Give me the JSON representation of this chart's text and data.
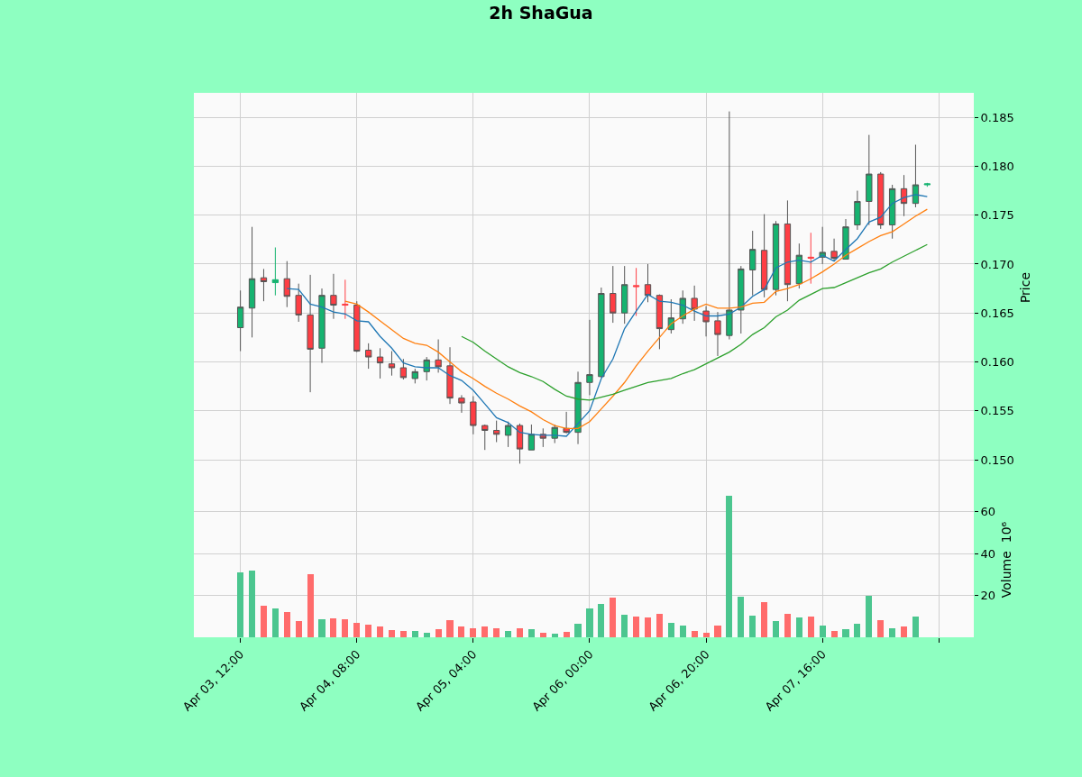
{
  "chart_data": [
    {
      "type": "candlestick",
      "title": "2h ShaGua",
      "ylabel": "Price",
      "x": [
        "--04-03T12:00",
        "--04-03T14:00",
        "--04-03T16:00",
        "--04-03T18:00",
        "--04-03T20:00",
        "--04-03T22:00",
        "--04-04T00:00",
        "--04-04T02:00",
        "--04-04T04:00",
        "--04-04T06:00",
        "--04-04T08:00",
        "--04-04T10:00",
        "--04-04T12:00",
        "--04-04T14:00",
        "--04-04T16:00",
        "--04-04T18:00",
        "--04-04T20:00",
        "--04-04T22:00",
        "--04-05T00:00",
        "--04-05T02:00",
        "--04-05T04:00",
        "--04-05T06:00",
        "--04-05T08:00",
        "--04-05T10:00",
        "--04-05T12:00",
        "--04-05T14:00",
        "--04-05T16:00",
        "--04-05T18:00",
        "--04-05T20:00",
        "--04-05T22:00",
        "--04-06T00:00",
        "--04-06T02:00",
        "--04-06T04:00",
        "--04-06T06:00",
        "--04-06T08:00",
        "--04-06T10:00",
        "--04-06T12:00",
        "--04-06T14:00",
        "--04-06T16:00",
        "--04-06T18:00",
        "--04-06T20:00",
        "--04-06T22:00",
        "--04-07T00:00",
        "--04-07T02:00",
        "--04-07T04:00",
        "--04-07T06:00",
        "--04-07T08:00",
        "--04-07T10:00",
        "--04-07T12:00",
        "--04-07T14:00",
        "--04-07T16:00",
        "--04-07T18:00",
        "--04-07T20:00",
        "--04-07T22:00",
        "--04-08T00:00",
        "--04-08T02:00",
        "--04-08T04:00",
        "--04-08T06:00",
        "--04-08T08:00",
        "--04-08T10:00"
      ],
      "ohlc": [
        [
          0.1635,
          0.1673,
          0.1611,
          0.1656
        ],
        [
          0.1655,
          0.1738,
          0.1625,
          0.1685
        ],
        [
          0.1686,
          0.1695,
          0.1662,
          0.1682
        ],
        [
          0.1681,
          0.1717,
          0.1668,
          0.1684
        ],
        [
          0.1685,
          0.1703,
          0.1656,
          0.1667
        ],
        [
          0.1668,
          0.168,
          0.1641,
          0.1648
        ],
        [
          0.1648,
          0.1689,
          0.1569,
          0.1613
        ],
        [
          0.1614,
          0.1675,
          0.1599,
          0.1668
        ],
        [
          0.1668,
          0.169,
          0.1644,
          0.1658
        ],
        [
          0.1659,
          0.1684,
          0.1644,
          0.1658
        ],
        [
          0.1658,
          0.1662,
          0.161,
          0.1611
        ],
        [
          0.1612,
          0.1619,
          0.1593,
          0.1605
        ],
        [
          0.1605,
          0.1614,
          0.1583,
          0.1599
        ],
        [
          0.1598,
          0.1611,
          0.1586,
          0.1594
        ],
        [
          0.1594,
          0.1603,
          0.1582,
          0.1584
        ],
        [
          0.1583,
          0.1593,
          0.1578,
          0.159
        ],
        [
          0.159,
          0.1605,
          0.1581,
          0.1602
        ],
        [
          0.1602,
          0.1623,
          0.1589,
          0.1595
        ],
        [
          0.1596,
          0.1615,
          0.1557,
          0.1563
        ],
        [
          0.1563,
          0.1566,
          0.1548,
          0.1558
        ],
        [
          0.1559,
          0.1565,
          0.1526,
          0.1535
        ],
        [
          0.1535,
          0.1536,
          0.151,
          0.153
        ],
        [
          0.153,
          0.154,
          0.1518,
          0.1526
        ],
        [
          0.1525,
          0.1539,
          0.1513,
          0.1535
        ],
        [
          0.1535,
          0.1537,
          0.1496,
          0.1511
        ],
        [
          0.151,
          0.1536,
          0.151,
          0.1526
        ],
        [
          0.1526,
          0.1532,
          0.1513,
          0.1522
        ],
        [
          0.1522,
          0.1536,
          0.1517,
          0.1533
        ],
        [
          0.1532,
          0.1549,
          0.1527,
          0.1528
        ],
        [
          0.1528,
          0.159,
          0.1516,
          0.1579
        ],
        [
          0.1579,
          0.1643,
          0.1566,
          0.1587
        ],
        [
          0.1585,
          0.1676,
          0.1584,
          0.167
        ],
        [
          0.167,
          0.1698,
          0.164,
          0.165
        ],
        [
          0.165,
          0.1698,
          0.1639,
          0.1679
        ],
        [
          0.1678,
          0.1696,
          0.1647,
          0.1677
        ],
        [
          0.1679,
          0.17,
          0.1661,
          0.1668
        ],
        [
          0.1668,
          0.1669,
          0.1613,
          0.1634
        ],
        [
          0.1633,
          0.1664,
          0.1629,
          0.1645
        ],
        [
          0.1644,
          0.1673,
          0.1639,
          0.1665
        ],
        [
          0.1665,
          0.1678,
          0.1642,
          0.1654
        ],
        [
          0.1652,
          0.1657,
          0.1626,
          0.1641
        ],
        [
          0.1642,
          0.1651,
          0.1606,
          0.1628
        ],
        [
          0.1627,
          0.1856,
          0.1623,
          0.1653
        ],
        [
          0.1653,
          0.1698,
          0.1629,
          0.1695
        ],
        [
          0.1694,
          0.1734,
          0.1668,
          0.1715
        ],
        [
          0.1714,
          0.1751,
          0.1666,
          0.1674
        ],
        [
          0.1674,
          0.1744,
          0.1668,
          0.1741
        ],
        [
          0.1741,
          0.1765,
          0.1662,
          0.1679
        ],
        [
          0.168,
          0.1721,
          0.1675,
          0.1709
        ],
        [
          0.1707,
          0.1732,
          0.168,
          0.1706
        ],
        [
          0.1707,
          0.1738,
          0.17,
          0.1712
        ],
        [
          0.1713,
          0.1726,
          0.1703,
          0.1706
        ],
        [
          0.1705,
          0.1746,
          0.1705,
          0.1738
        ],
        [
          0.174,
          0.1775,
          0.1735,
          0.1764
        ],
        [
          0.1764,
          0.1832,
          0.174,
          0.1792
        ],
        [
          0.1792,
          0.1794,
          0.1736,
          0.174
        ],
        [
          0.174,
          0.1781,
          0.1726,
          0.1777
        ],
        [
          0.1777,
          0.1791,
          0.1749,
          0.1762
        ],
        [
          0.1762,
          0.1822,
          0.1758,
          0.1781
        ],
        [
          0.1781,
          0.1783,
          0.1779,
          0.1782
        ]
      ],
      "colors": [
        "#16b370",
        "#16b370",
        "#fe3e44",
        "#16b370",
        "#fe3e44",
        "#fe3e44",
        "#fe3e44",
        "#16b370",
        "#fe3e44",
        "#fe3e44",
        "#fe3e44",
        "#fe3e44",
        "#fe3e44",
        "#fe3e44",
        "#fe3e44",
        "#16b370",
        "#16b370",
        "#fe3e44",
        "#fe3e44",
        "#fe3e44",
        "#fe3e44",
        "#fe3e44",
        "#fe3e44",
        "#16b370",
        "#fe3e44",
        "#16b370",
        "#fe3e44",
        "#16b370",
        "#fe3e44",
        "#16b370",
        "#16b370",
        "#16b370",
        "#fe3e44",
        "#16b370",
        "#fe3e44",
        "#fe3e44",
        "#fe3e44",
        "#16b370",
        "#16b370",
        "#fe3e44",
        "#fe3e44",
        "#fe3e44",
        "#16b370",
        "#16b370",
        "#16b370",
        "#fe3e44",
        "#16b370",
        "#fe3e44",
        "#16b370",
        "#fe3e44",
        "#16b370",
        "#fe3e44",
        "#16b370",
        "#16b370",
        "#16b370",
        "#fe3e44",
        "#16b370",
        "#fe3e44",
        "#16b370",
        "#16b370"
      ],
      "series": [
        {
          "type": "line",
          "color": "#1f77b4",
          "values": [
            null,
            null,
            null,
            null,
            0.1675,
            0.1674,
            0.1659,
            0.1656,
            0.1651,
            0.1649,
            0.1642,
            0.1641,
            0.1626,
            0.1614,
            0.1599,
            0.1595,
            0.1594,
            0.1594,
            0.1586,
            0.1581,
            0.1571,
            0.1557,
            0.1543,
            0.1538,
            0.1528,
            0.1526,
            0.1525,
            0.1525,
            0.1524,
            0.1537,
            0.155,
            0.1583,
            0.1603,
            0.1634,
            0.1652,
            0.1669,
            0.1662,
            0.1661,
            0.1658,
            0.1652,
            0.1647,
            0.1647,
            0.1649,
            0.1656,
            0.1667,
            0.1674,
            0.1696,
            0.1702,
            0.1704,
            0.1702,
            0.1709,
            0.1703,
            0.1715,
            0.1726,
            0.1743,
            0.1748,
            0.1762,
            0.1768,
            0.1771,
            0.1769
          ]
        },
        {
          "type": "line",
          "color": "#ff7f0e",
          "values": [
            null,
            null,
            null,
            null,
            null,
            null,
            null,
            null,
            null,
            0.1662,
            0.1659,
            0.1651,
            0.1642,
            0.1633,
            0.1624,
            0.1619,
            0.1617,
            0.161,
            0.16,
            0.159,
            0.1583,
            0.1575,
            0.1568,
            0.1562,
            0.1555,
            0.1549,
            0.1541,
            0.1535,
            0.1532,
            0.1532,
            0.1539,
            0.1552,
            0.1565,
            0.1579,
            0.1596,
            0.1611,
            0.1625,
            0.1639,
            0.1647,
            0.1654,
            0.1659,
            0.1655,
            0.1655,
            0.1656,
            0.166,
            0.1661,
            0.1672,
            0.1675,
            0.1679,
            0.1685,
            0.1692,
            0.17,
            0.1709,
            0.1716,
            0.1723,
            0.1729,
            0.1733,
            0.1741,
            0.1749,
            0.1756
          ]
        },
        {
          "type": "line",
          "color": "#2ca02c",
          "values": [
            null,
            null,
            null,
            null,
            null,
            null,
            null,
            null,
            null,
            null,
            null,
            null,
            null,
            null,
            null,
            null,
            null,
            null,
            null,
            0.1626,
            0.162,
            0.1611,
            0.1603,
            0.1595,
            0.1589,
            0.1585,
            0.158,
            0.1572,
            0.1565,
            0.1562,
            0.1561,
            0.1564,
            0.1567,
            0.1571,
            0.1575,
            0.1579,
            0.1581,
            0.1583,
            0.1588,
            0.1592,
            0.1598,
            0.1604,
            0.161,
            0.1618,
            0.1628,
            0.1635,
            0.1646,
            0.1653,
            0.1663,
            0.1669,
            0.1675,
            0.1676,
            0.1681,
            0.1686,
            0.1691,
            0.1695,
            0.1702,
            0.1708,
            0.1714,
            0.172
          ]
        }
      ],
      "xlim": [
        "--04-03T04:00",
        "--04-08T18:00"
      ],
      "xticks": [
        {
          "value": "--04-03T12:00",
          "label": "Apr 03, 12:00"
        },
        {
          "value": "--04-04T08:00",
          "label": "Apr 04, 08:00"
        },
        {
          "value": "--04-05T04:00",
          "label": "Apr 05, 04:00"
        },
        {
          "value": "--04-06T00:00",
          "label": "Apr 06, 00:00"
        },
        {
          "value": "--04-06T20:00",
          "label": "Apr 06, 20:00"
        },
        {
          "value": "--04-07T16:00",
          "label": "Apr 07, 16:00"
        },
        {
          "value": "--04-08T12:00",
          "label": null
        }
      ],
      "ylim": [
        0.1477,
        0.1875
      ],
      "yticks": [
        {
          "value": 0.15,
          "label": "0.150"
        },
        0.155,
        {
          "value": 0.16,
          "label": "0.160"
        },
        0.165,
        {
          "value": 0.17,
          "label": "0.170"
        },
        0.175,
        {
          "value": 0.18,
          "label": "0.180"
        },
        0.185
      ],
      "grid": true,
      "tick_labels": "y"
    },
    {
      "type": "bar",
      "ylabel": "Volume  10⁶",
      "x": [
        "--04-03T12:00",
        "--04-03T14:00",
        "--04-03T16:00",
        "--04-03T18:00",
        "--04-03T20:00",
        "--04-03T22:00",
        "--04-04T00:00",
        "--04-04T02:00",
        "--04-04T04:00",
        "--04-04T06:00",
        "--04-04T08:00",
        "--04-04T10:00",
        "--04-04T12:00",
        "--04-04T14:00",
        "--04-04T16:00",
        "--04-04T18:00",
        "--04-04T20:00",
        "--04-04T22:00",
        "--04-05T00:00",
        "--04-05T02:00",
        "--04-05T04:00",
        "--04-05T06:00",
        "--04-05T08:00",
        "--04-05T10:00",
        "--04-05T12:00",
        "--04-05T14:00",
        "--04-05T16:00",
        "--04-05T18:00",
        "--04-05T20:00",
        "--04-05T22:00",
        "--04-06T00:00",
        "--04-06T02:00",
        "--04-06T04:00",
        "--04-06T06:00",
        "--04-06T08:00",
        "--04-06T10:00",
        "--04-06T12:00",
        "--04-06T14:00",
        "--04-06T16:00",
        "--04-06T18:00",
        "--04-06T20:00",
        "--04-06T22:00",
        "--04-07T00:00",
        "--04-07T02:00",
        "--04-07T04:00",
        "--04-07T06:00",
        "--04-07T08:00",
        "--04-07T10:00",
        "--04-07T12:00",
        "--04-07T14:00",
        "--04-07T16:00",
        "--04-07T18:00",
        "--04-07T20:00",
        "--04-07T22:00",
        "--04-08T00:00",
        "--04-08T02:00",
        "--04-08T04:00",
        "--04-08T06:00",
        "--04-08T08:00"
      ],
      "values": [
        31.0,
        31.8,
        15.1,
        13.8,
        12.0,
        7.7,
        30.1,
        8.6,
        9.0,
        8.6,
        6.9,
        6.0,
        5.2,
        3.4,
        3.0,
        3.0,
        2.2,
        3.9,
        8.2,
        5.2,
        4.3,
        5.2,
        4.3,
        3.0,
        4.3,
        3.9,
        2.2,
        1.7,
        2.6,
        6.5,
        13.8,
        15.9,
        18.9,
        10.8,
        9.9,
        9.5,
        11.2,
        6.9,
        5.6,
        3.0,
        2.2,
        5.6,
        67.5,
        19.4,
        10.3,
        16.8,
        7.7,
        11.2,
        9.5,
        9.9,
        5.6,
        3.0,
        3.9,
        6.5,
        19.8,
        8.2,
        4.3,
        5.2,
        9.9
      ],
      "colors": [
        "#4bc68f",
        "#4bc68f",
        "#ff6b6b",
        "#4bc68f",
        "#ff6b6b",
        "#ff6b6b",
        "#ff6b6b",
        "#4bc68f",
        "#ff6b6b",
        "#ff6b6b",
        "#ff6b6b",
        "#ff6b6b",
        "#ff6b6b",
        "#ff6b6b",
        "#ff6b6b",
        "#4bc68f",
        "#4bc68f",
        "#ff6b6b",
        "#ff6b6b",
        "#ff6b6b",
        "#ff6b6b",
        "#ff6b6b",
        "#ff6b6b",
        "#4bc68f",
        "#ff6b6b",
        "#4bc68f",
        "#ff6b6b",
        "#4bc68f",
        "#ff6b6b",
        "#4bc68f",
        "#4bc68f",
        "#4bc68f",
        "#ff6b6b",
        "#4bc68f",
        "#ff6b6b",
        "#ff6b6b",
        "#ff6b6b",
        "#4bc68f",
        "#4bc68f",
        "#ff6b6b",
        "#ff6b6b",
        "#ff6b6b",
        "#4bc68f",
        "#4bc68f",
        "#4bc68f",
        "#ff6b6b",
        "#4bc68f",
        "#ff6b6b",
        "#4bc68f",
        "#ff6b6b",
        "#4bc68f",
        "#ff6b6b",
        "#4bc68f",
        "#4bc68f",
        "#4bc68f",
        "#ff6b6b",
        "#4bc68f",
        "#ff6b6b",
        "#4bc68f"
      ],
      "xlim": [
        "--04-03T04:00",
        "--04-08T18:00"
      ],
      "xticks": [
        {
          "value": "--04-03T12:00",
          "label": "Apr 03, 12:00"
        },
        {
          "value": "--04-04T08:00",
          "label": "Apr 04, 08:00"
        },
        {
          "value": "--04-05T04:00",
          "label": "Apr 05, 04:00"
        },
        {
          "value": "--04-06T00:00",
          "label": "Apr 06, 00:00"
        },
        {
          "value": "--04-06T20:00",
          "label": "Apr 06, 20:00"
        },
        {
          "value": "--04-07T16:00",
          "label": "Apr 07, 16:00"
        },
        {
          "value": "--04-08T12:00",
          "label": null
        }
      ],
      "ylim": [
        0,
        74
      ],
      "yticks": [
        20,
        40,
        60
      ],
      "grid": true
    }
  ]
}
